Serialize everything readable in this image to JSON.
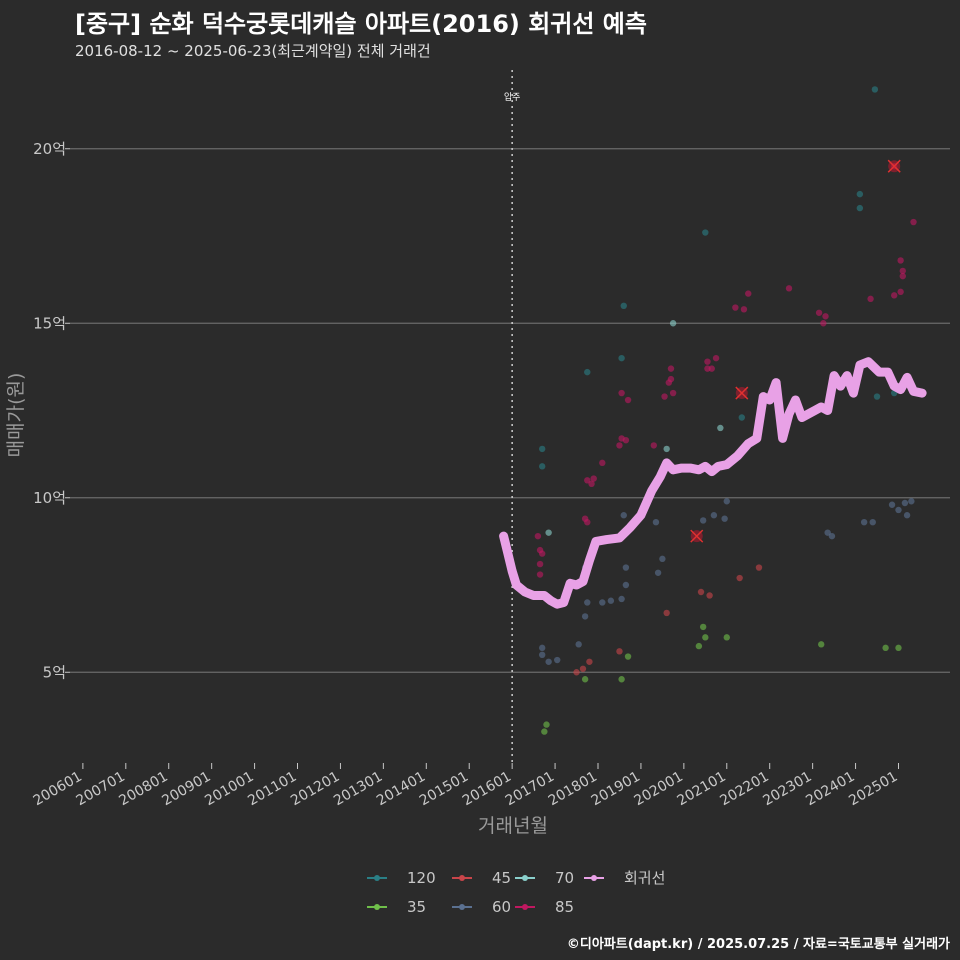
{
  "title": "[중구] 순화 덕수궁롯데캐슬 아파트(2016) 회귀선 예측",
  "subtitle": "2016-08-12 ~ 2025-06-23(최근계약일) 전체 거래건",
  "caption": "©디아파트(dapt.kr) / 2025.07.25 / 자료=국토교통부 실거래가",
  "chart_data": {
    "type": "scatter",
    "xlabel": "거래년월",
    "ylabel": "매매가(원)",
    "x_range": [
      2005.7,
      2026.2
    ],
    "ylim": [
      2.4,
      22.4
    ],
    "y_ticks": [
      {
        "value": 5,
        "label": "5억"
      },
      {
        "value": 10,
        "label": "10억"
      },
      {
        "value": 15,
        "label": "15억"
      },
      {
        "value": 20,
        "label": "20억"
      }
    ],
    "x_ticks": [
      {
        "value": 2006,
        "label": "200601"
      },
      {
        "value": 2007,
        "label": "200701"
      },
      {
        "value": 2008,
        "label": "200801"
      },
      {
        "value": 2009,
        "label": "200901"
      },
      {
        "value": 2010,
        "label": "201001"
      },
      {
        "value": 2011,
        "label": "201101"
      },
      {
        "value": 2012,
        "label": "201201"
      },
      {
        "value": 2013,
        "label": "201301"
      },
      {
        "value": 2014,
        "label": "201401"
      },
      {
        "value": 2015,
        "label": "201501"
      },
      {
        "value": 2016,
        "label": "201601"
      },
      {
        "value": 2017,
        "label": "201701"
      },
      {
        "value": 2018,
        "label": "201801"
      },
      {
        "value": 2019,
        "label": "201901"
      },
      {
        "value": 2020,
        "label": "202001"
      },
      {
        "value": 2021,
        "label": "202101"
      },
      {
        "value": 2022,
        "label": "202201"
      },
      {
        "value": 2023,
        "label": "202301"
      },
      {
        "value": 2024,
        "label": "202401"
      },
      {
        "value": 2025,
        "label": "202501"
      }
    ],
    "annotation": {
      "x": 2016.0,
      "label": "입주"
    },
    "colors": {
      "120": "#2a7f86",
      "35": "#6fbf4a",
      "45": "#c9454a",
      "60": "#5b7191",
      "70": "#8ad0cc",
      "85": "#c01860",
      "회귀선": "#e8a1e6"
    },
    "legend": [
      "120",
      "45",
      "70",
      "회귀선",
      "35",
      "60",
      "85"
    ],
    "series": [
      {
        "name": "120",
        "points": [
          [
            2020.5,
            17.6
          ],
          [
            2024.1,
            18.7
          ],
          [
            2024.1,
            18.3
          ],
          [
            2024.45,
            21.7
          ],
          [
            2018.6,
            15.5
          ],
          [
            2018.55,
            14.0
          ],
          [
            2017.75,
            13.6
          ],
          [
            2016.7,
            11.4
          ],
          [
            2016.7,
            10.9
          ],
          [
            2021.35,
            12.3
          ],
          [
            2024.9,
            13.0
          ],
          [
            2024.5,
            12.9
          ]
        ]
      },
      {
        "name": "35",
        "points": [
          [
            2016.8,
            3.5
          ],
          [
            2016.75,
            3.3
          ],
          [
            2017.7,
            4.8
          ],
          [
            2018.55,
            4.8
          ],
          [
            2018.7,
            5.45
          ],
          [
            2020.35,
            5.75
          ],
          [
            2020.5,
            6.0
          ],
          [
            2020.45,
            6.3
          ],
          [
            2021.0,
            6.0
          ],
          [
            2023.2,
            5.8
          ],
          [
            2024.7,
            5.7
          ],
          [
            2025.0,
            5.7
          ]
        ]
      },
      {
        "name": "45",
        "points": [
          [
            2017.5,
            5.0
          ],
          [
            2017.8,
            5.3
          ],
          [
            2017.65,
            5.1
          ],
          [
            2018.5,
            5.6
          ],
          [
            2020.4,
            7.3
          ],
          [
            2020.6,
            7.2
          ],
          [
            2021.3,
            7.7
          ],
          [
            2021.75,
            8.0
          ],
          [
            2019.6,
            6.7
          ]
        ]
      },
      {
        "name": "60",
        "points": [
          [
            2016.7,
            5.5
          ],
          [
            2016.7,
            5.7
          ],
          [
            2016.85,
            5.3
          ],
          [
            2017.05,
            5.35
          ],
          [
            2017.55,
            5.8
          ],
          [
            2017.7,
            6.6
          ],
          [
            2017.75,
            7.0
          ],
          [
            2018.1,
            7.0
          ],
          [
            2018.3,
            7.05
          ],
          [
            2018.55,
            7.1
          ],
          [
            2018.65,
            7.5
          ],
          [
            2017.7,
            8.0
          ],
          [
            2018.65,
            8.0
          ],
          [
            2019.4,
            7.85
          ],
          [
            2019.5,
            8.25
          ],
          [
            2018.6,
            9.5
          ],
          [
            2019.35,
            9.3
          ],
          [
            2020.45,
            9.35
          ],
          [
            2020.7,
            9.5
          ],
          [
            2020.95,
            9.4
          ],
          [
            2021.0,
            9.9
          ],
          [
            2023.35,
            9.0
          ],
          [
            2023.45,
            8.9
          ],
          [
            2024.2,
            9.3
          ],
          [
            2024.4,
            9.3
          ],
          [
            2024.85,
            9.8
          ],
          [
            2025.0,
            9.65
          ],
          [
            2025.15,
            9.85
          ],
          [
            2025.3,
            9.9
          ],
          [
            2025.2,
            9.5
          ]
        ]
      },
      {
        "name": "70",
        "points": [
          [
            2016.85,
            9.0
          ],
          [
            2019.75,
            15.0
          ],
          [
            2020.85,
            12.0
          ],
          [
            2019.6,
            11.4
          ]
        ]
      },
      {
        "name": "85",
        "points": [
          [
            2016.6,
            8.9
          ],
          [
            2016.65,
            8.5
          ],
          [
            2016.7,
            8.4
          ],
          [
            2016.65,
            8.1
          ],
          [
            2016.65,
            7.8
          ],
          [
            2017.7,
            9.4
          ],
          [
            2017.75,
            9.3
          ],
          [
            2017.75,
            10.5
          ],
          [
            2017.85,
            10.4
          ],
          [
            2017.9,
            10.55
          ],
          [
            2018.1,
            11.0
          ],
          [
            2018.5,
            11.5
          ],
          [
            2018.55,
            11.7
          ],
          [
            2018.65,
            11.65
          ],
          [
            2018.55,
            13.0
          ],
          [
            2018.7,
            12.8
          ],
          [
            2019.3,
            11.5
          ],
          [
            2019.55,
            12.9
          ],
          [
            2019.65,
            13.3
          ],
          [
            2019.7,
            13.4
          ],
          [
            2019.7,
            13.7
          ],
          [
            2019.75,
            13.0
          ],
          [
            2020.55,
            13.9
          ],
          [
            2020.55,
            13.7
          ],
          [
            2020.65,
            13.7
          ],
          [
            2020.75,
            14.0
          ],
          [
            2021.2,
            15.45
          ],
          [
            2021.4,
            15.4
          ],
          [
            2021.5,
            15.85
          ],
          [
            2022.45,
            16.0
          ],
          [
            2023.15,
            15.3
          ],
          [
            2023.25,
            15.0
          ],
          [
            2023.3,
            15.2
          ],
          [
            2024.35,
            15.7
          ],
          [
            2024.9,
            15.8
          ],
          [
            2025.05,
            15.9
          ],
          [
            2025.1,
            16.5
          ],
          [
            2025.1,
            16.35
          ],
          [
            2025.05,
            16.8
          ],
          [
            2025.35,
            17.9
          ],
          [
            2024.9,
            19.5
          ]
        ]
      }
    ],
    "highlighted": [
      [
        2020.3,
        8.9
      ],
      [
        2021.35,
        13.0
      ],
      [
        2024.9,
        19.5
      ]
    ],
    "regression": {
      "name": "회귀선",
      "points": [
        [
          2015.8,
          8.9
        ],
        [
          2015.9,
          8.4
        ],
        [
          2016.0,
          7.9
        ],
        [
          2016.1,
          7.5
        ],
        [
          2016.3,
          7.3
        ],
        [
          2016.5,
          7.2
        ],
        [
          2016.75,
          7.2
        ],
        [
          2016.9,
          7.05
        ],
        [
          2017.05,
          6.95
        ],
        [
          2017.2,
          7.0
        ],
        [
          2017.35,
          7.55
        ],
        [
          2017.5,
          7.5
        ],
        [
          2017.65,
          7.6
        ],
        [
          2017.8,
          8.2
        ],
        [
          2017.95,
          8.75
        ],
        [
          2018.2,
          8.8
        ],
        [
          2018.5,
          8.85
        ],
        [
          2018.75,
          9.15
        ],
        [
          2019.0,
          9.5
        ],
        [
          2019.25,
          10.2
        ],
        [
          2019.45,
          10.6
        ],
        [
          2019.6,
          11.0
        ],
        [
          2019.75,
          10.8
        ],
        [
          2019.95,
          10.85
        ],
        [
          2020.15,
          10.85
        ],
        [
          2020.35,
          10.8
        ],
        [
          2020.5,
          10.9
        ],
        [
          2020.65,
          10.75
        ],
        [
          2020.8,
          10.9
        ],
        [
          2021.0,
          10.95
        ],
        [
          2021.25,
          11.2
        ],
        [
          2021.5,
          11.55
        ],
        [
          2021.7,
          11.7
        ],
        [
          2021.85,
          12.9
        ],
        [
          2022.0,
          12.8
        ],
        [
          2022.15,
          13.3
        ],
        [
          2022.3,
          11.7
        ],
        [
          2022.45,
          12.4
        ],
        [
          2022.6,
          12.8
        ],
        [
          2022.75,
          12.3
        ],
        [
          2022.9,
          12.4
        ],
        [
          2023.05,
          12.5
        ],
        [
          2023.2,
          12.6
        ],
        [
          2023.35,
          12.5
        ],
        [
          2023.5,
          13.5
        ],
        [
          2023.65,
          13.2
        ],
        [
          2023.8,
          13.5
        ],
        [
          2023.95,
          13.0
        ],
        [
          2024.1,
          13.8
        ],
        [
          2024.3,
          13.9
        ],
        [
          2024.55,
          13.6
        ],
        [
          2024.75,
          13.6
        ],
        [
          2024.9,
          13.2
        ],
        [
          2025.05,
          13.1
        ],
        [
          2025.2,
          13.45
        ],
        [
          2025.35,
          13.05
        ],
        [
          2025.55,
          13.0
        ]
      ]
    }
  }
}
